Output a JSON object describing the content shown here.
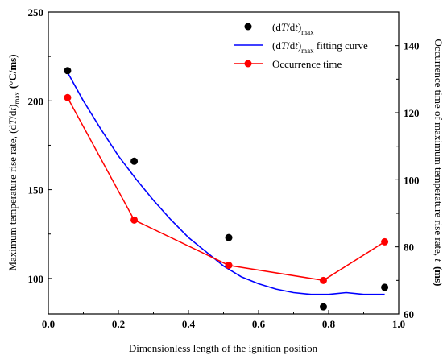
{
  "chart_data": {
    "type": "line",
    "x": [
      0.055,
      0.245,
      0.515,
      0.785,
      0.96
    ],
    "xlabel": "Dimensionless length of the ignition position",
    "ylabel_left": "Maximum temperature rise rate, (dT/dt)max (°C/ms)",
    "ylabel_left_parts": {
      "main": "Maximum temperature rise rate, (d",
      "var_T": "T",
      "slash": "/d",
      "var_t": "t",
      "close": ")",
      "sub": "max",
      "unit": "(°C/ms)"
    },
    "ylabel_right": "Occurrence time of maximum temperature rise rate, t (ms)",
    "ylabel_right_parts": {
      "main": "Occurrence time of maximum temperature rise rate, ",
      "var": "t",
      "unit": "(ms)"
    },
    "xlim": [
      0.0,
      1.0
    ],
    "ylim_left": [
      80,
      250
    ],
    "ylim_right": [
      60,
      150
    ],
    "xticks": [
      "0.0",
      "0.2",
      "0.4",
      "0.6",
      "0.8",
      "1.0"
    ],
    "yticks_left": [
      "100",
      "150",
      "200",
      "250"
    ],
    "yticks_right": [
      "60",
      "80",
      "100",
      "120",
      "140"
    ],
    "series": [
      {
        "name": "(dT/dt)max",
        "axis": "left",
        "style": "scatter",
        "color": "#000000",
        "values": [
          217,
          166,
          123,
          84,
          95
        ]
      },
      {
        "name": "(dT/dt)max fitting curve",
        "axis": "left",
        "style": "line",
        "color": "#0000ff",
        "curve_x": [
          0.055,
          0.1,
          0.15,
          0.2,
          0.25,
          0.3,
          0.35,
          0.4,
          0.45,
          0.5,
          0.55,
          0.6,
          0.65,
          0.7,
          0.75,
          0.8,
          0.85,
          0.9,
          0.96
        ],
        "curve_y": [
          216,
          200,
          184,
          169,
          156,
          144,
          133,
          123,
          115,
          107,
          101,
          97,
          94,
          92,
          91,
          91,
          92,
          91,
          91
        ]
      },
      {
        "name": "Occurrence time",
        "axis": "right",
        "style": "line-marker",
        "color": "#ff0000",
        "values": [
          124.5,
          88,
          74.5,
          70,
          81.5
        ]
      }
    ],
    "legend": {
      "position": "top-right",
      "entries": [
        {
          "pre": "(d",
          "v1": "T",
          "mid": "/d",
          "v2": "t",
          "post": ")",
          "sub": "max",
          "suffix": ""
        },
        {
          "pre": "(d",
          "v1": "T",
          "mid": "/d",
          "v2": "t",
          "post": ")",
          "sub": "max",
          "suffix": " fitting curve"
        },
        {
          "pre": "",
          "v1": "",
          "mid": "",
          "v2": "",
          "post": "",
          "sub": "",
          "suffix": "Occurrence time"
        }
      ]
    }
  }
}
